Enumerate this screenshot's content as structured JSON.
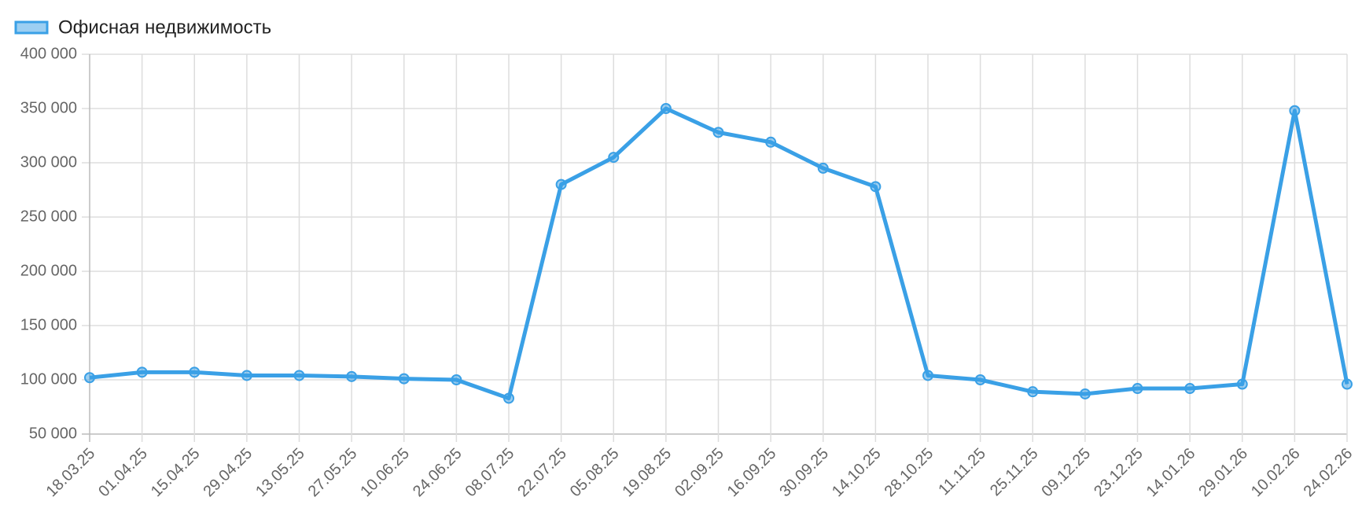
{
  "chart_data": {
    "type": "line",
    "categories": [
      "18.03.25",
      "01.04.25",
      "15.04.25",
      "29.04.25",
      "13.05.25",
      "27.05.25",
      "10.06.25",
      "24.06.25",
      "08.07.25",
      "22.07.25",
      "05.08.25",
      "19.08.25",
      "02.09.25",
      "16.09.25",
      "30.09.25",
      "14.10.25",
      "28.10.25",
      "11.11.25",
      "25.11.25",
      "09.12.25",
      "23.12.25",
      "14.01.26",
      "29.01.26",
      "10.02.26",
      "24.02.26"
    ],
    "series": [
      {
        "name": "Офисная недвижимость",
        "color": "#3aa0e6",
        "values": [
          102000,
          107000,
          107000,
          104000,
          104000,
          103000,
          101000,
          100000,
          83000,
          280000,
          305000,
          350000,
          328000,
          319000,
          295000,
          278000,
          104000,
          100000,
          89000,
          87000,
          92000,
          92000,
          96000,
          348000,
          96000
        ]
      }
    ],
    "ylim": [
      50000,
      400000
    ],
    "yticks": [
      {
        "value": 50000,
        "label": "50 000"
      },
      {
        "value": 100000,
        "label": "100 000"
      },
      {
        "value": 150000,
        "label": "150 000"
      },
      {
        "value": 200000,
        "label": "200 000"
      },
      {
        "value": 250000,
        "label": "250 000"
      },
      {
        "value": 300000,
        "label": "300 000"
      },
      {
        "value": 350000,
        "label": "350 000"
      },
      {
        "value": 400000,
        "label": "400 000"
      }
    ],
    "grid": true
  }
}
